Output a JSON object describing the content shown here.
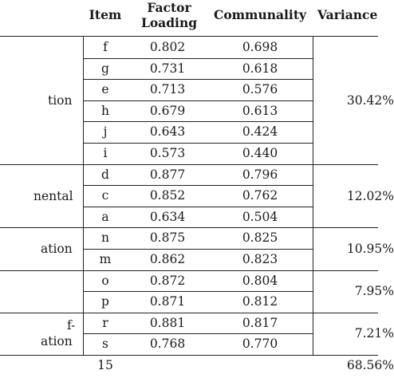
{
  "headers": {
    "item": "Item",
    "factor_loading_1": "Factor",
    "factor_loading_2": "Loading",
    "communality": "Communality",
    "variance": "Variance"
  },
  "rows": [
    {
      "item": "f",
      "loading": "0.802",
      "communality": "0.698"
    },
    {
      "item": "g",
      "loading": "0.731",
      "communality": "0.618"
    },
    {
      "item": "e",
      "loading": "0.713",
      "communality": "0.576"
    },
    {
      "item": "h",
      "loading": "0.679",
      "communality": "0.613"
    },
    {
      "item": "j",
      "loading": "0.643",
      "communality": "0.424"
    },
    {
      "item": "i",
      "loading": "0.573",
      "communality": "0.440"
    },
    {
      "item": "d",
      "loading": "0.877",
      "communality": "0.796"
    },
    {
      "item": "c",
      "loading": "0.852",
      "communality": "0.762"
    },
    {
      "item": "a",
      "loading": "0.634",
      "communality": "0.504"
    },
    {
      "item": "n",
      "loading": "0.875",
      "communality": "0.825"
    },
    {
      "item": "m",
      "loading": "0.862",
      "communality": "0.823"
    },
    {
      "item": "o",
      "loading": "0.872",
      "communality": "0.804"
    },
    {
      "item": "p",
      "loading": "0.871",
      "communality": "0.812"
    },
    {
      "item": "r",
      "loading": "0.881",
      "communality": "0.817"
    },
    {
      "item": "s",
      "loading": "0.768",
      "communality": "0.770"
    }
  ],
  "groups": [
    {
      "label_lines": [
        "tion"
      ],
      "variance": "30.42%"
    },
    {
      "label_lines": [
        "nental"
      ],
      "variance": "12.02%"
    },
    {
      "label_lines": [
        "ation"
      ],
      "variance": "10.95%"
    },
    {
      "label_lines": [],
      "variance": "7.95%"
    },
    {
      "label_lines": [
        "f-",
        "ation"
      ],
      "variance": "7.21%"
    }
  ],
  "total": {
    "item": "15",
    "variance": "68.56%"
  }
}
